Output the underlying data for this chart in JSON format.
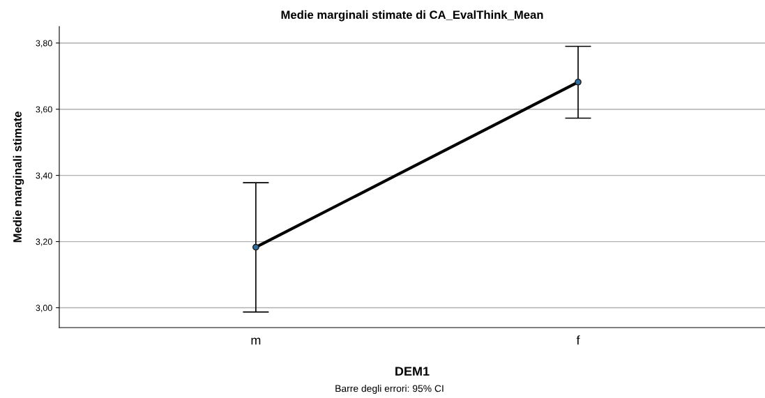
{
  "chart_data": {
    "type": "line",
    "title": "Medie marginali stimate di CA_EvalThink_Mean",
    "xlabel": "DEM1",
    "ylabel": "Medie marginali stimate",
    "categories": [
      "m",
      "f"
    ],
    "color": "#000000",
    "values": [
      3.183,
      3.682
    ],
    "errors": [
      [
        2.987,
        3.378
      ],
      [
        3.573,
        3.79
      ]
    ],
    "ylim": [
      2.94,
      3.85
    ],
    "yticks": [
      {
        "value": 3.0,
        "label": "3,00"
      },
      {
        "value": 3.2,
        "label": "3,20"
      },
      {
        "value": 3.4,
        "label": "3,40"
      },
      {
        "value": 3.6,
        "label": "3,60"
      },
      {
        "value": 3.8,
        "label": "3,80"
      }
    ],
    "grid": "y",
    "marker": "circle",
    "line_style": "solid",
    "annotations": [
      "Barre degli errori: 95% CI"
    ]
  }
}
